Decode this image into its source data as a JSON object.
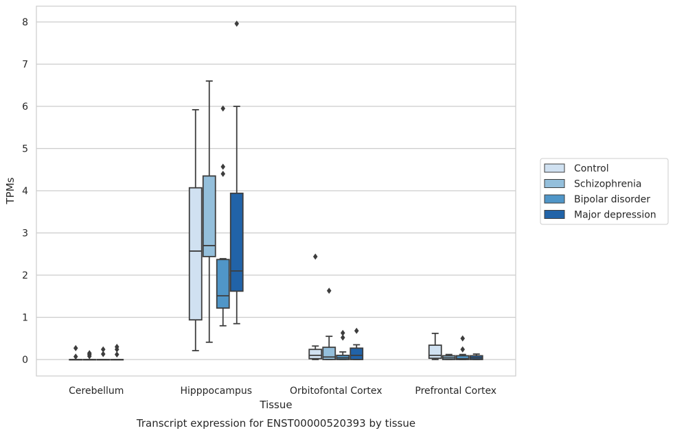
{
  "chart_data": {
    "type": "box",
    "xlabel": "Tissue",
    "ylabel": "TPMs",
    "caption": "Transcript expression for ENST00000520393 by tissue",
    "ylim": [
      -0.38,
      8.38
    ],
    "yticks": [
      0,
      1,
      2,
      3,
      4,
      5,
      6,
      7,
      8
    ],
    "grid": "horizontal",
    "legend_position": "right",
    "categories": [
      "Cerebellum",
      "Hipppocampus",
      "Orbitofontal Cortex",
      "Prefrontal Cortex"
    ],
    "series": [
      {
        "name": "Control",
        "color": "#d0e1f1",
        "boxes": [
          {
            "min": 0,
            "q1": 0,
            "median": 0,
            "q3": 0,
            "max": 0,
            "outliers": [
              0.07,
              0.27
            ]
          },
          {
            "min": 0.21,
            "q1": 0.94,
            "median": 2.57,
            "q3": 4.07,
            "max": 5.92,
            "outliers": []
          },
          {
            "min": 0.0,
            "q1": 0.02,
            "median": 0.1,
            "q3": 0.24,
            "max": 0.32,
            "outliers": [
              2.44
            ]
          },
          {
            "min": 0.0,
            "q1": 0.03,
            "median": 0.1,
            "q3": 0.34,
            "max": 0.62,
            "outliers": []
          }
        ]
      },
      {
        "name": "Schizophrenia",
        "color": "#94bfdb",
        "boxes": [
          {
            "min": 0,
            "q1": 0,
            "median": 0,
            "q3": 0,
            "max": 0,
            "outliers": [
              0.08,
              0.12,
              0.15
            ]
          },
          {
            "min": 0.41,
            "q1": 2.44,
            "median": 2.7,
            "q3": 4.35,
            "max": 6.6,
            "outliers": []
          },
          {
            "min": 0.0,
            "q1": 0.0,
            "median": 0.06,
            "q3": 0.29,
            "max": 0.55,
            "outliers": [
              1.63
            ]
          },
          {
            "min": 0.0,
            "q1": 0.0,
            "median": 0.04,
            "q3": 0.09,
            "max": 0.12,
            "outliers": []
          }
        ]
      },
      {
        "name": "Bipolar disorder",
        "color": "#5096c8",
        "boxes": [
          {
            "min": 0,
            "q1": 0,
            "median": 0,
            "q3": 0,
            "max": 0,
            "outliers": [
              0.13,
              0.24
            ]
          },
          {
            "min": 0.8,
            "q1": 1.22,
            "median": 1.51,
            "q3": 2.37,
            "max": 2.39,
            "outliers": [
              4.4,
              4.57,
              5.95
            ]
          },
          {
            "min": 0.0,
            "q1": 0.0,
            "median": 0.04,
            "q3": 0.1,
            "max": 0.18,
            "outliers": [
              0.52,
              0.63
            ]
          },
          {
            "min": 0.0,
            "q1": 0.0,
            "median": 0.02,
            "q3": 0.09,
            "max": 0.12,
            "outliers": [
              0.24,
              0.5
            ]
          }
        ]
      },
      {
        "name": "Major depression",
        "color": "#2163a8",
        "boxes": [
          {
            "min": 0,
            "q1": 0,
            "median": 0,
            "q3": 0,
            "max": 0,
            "outliers": [
              0.12,
              0.24,
              0.3
            ]
          },
          {
            "min": 0.85,
            "q1": 1.62,
            "median": 2.1,
            "q3": 3.94,
            "max": 6.0,
            "outliers": [
              7.96
            ]
          },
          {
            "min": 0.0,
            "q1": 0.0,
            "median": 0.1,
            "q3": 0.27,
            "max": 0.35,
            "outliers": [
              0.68
            ]
          },
          {
            "min": 0.0,
            "q1": 0.0,
            "median": 0.04,
            "q3": 0.09,
            "max": 0.13,
            "outliers": []
          }
        ]
      }
    ]
  }
}
